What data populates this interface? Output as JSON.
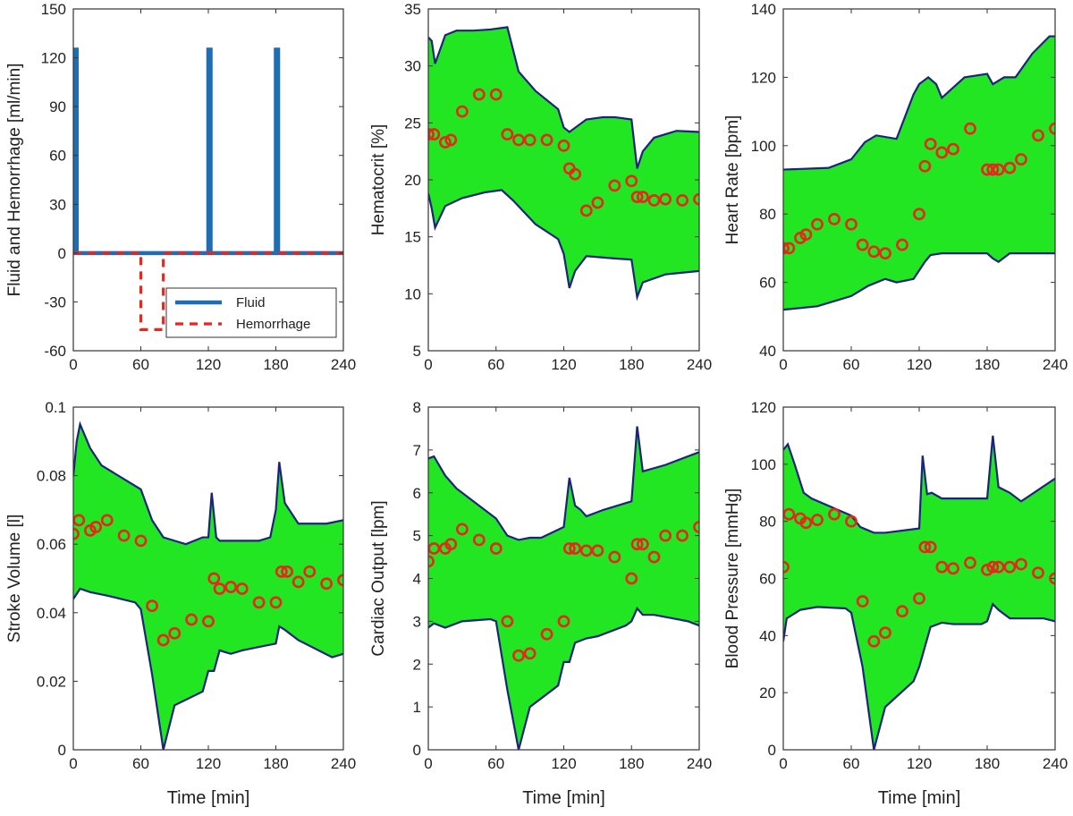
{
  "chart_data": [
    {
      "type": "line",
      "id": "fluid-hemorrhage",
      "ylabel": "Fluid and Hemorrhage [ml/min]",
      "xlabel": "",
      "xlim": [
        0,
        240
      ],
      "ylim": [
        -60,
        150
      ],
      "xticks": [
        0,
        60,
        120,
        180,
        240
      ],
      "yticks": [
        -60,
        -30,
        0,
        30,
        60,
        90,
        120,
        150
      ],
      "legend": {
        "position": "bottom-right",
        "entries": [
          "Fluid",
          "Hemorrhage"
        ]
      },
      "series": [
        {
          "name": "Fluid",
          "style": "solid",
          "color": "#1f6db5",
          "x": [
            0,
            1,
            1,
            3,
            3,
            120,
            120,
            122,
            122,
            180,
            180,
            182,
            182,
            240
          ],
          "y": [
            0,
            0,
            125,
            125,
            0,
            0,
            125,
            125,
            0,
            0,
            125,
            125,
            0,
            0
          ]
        },
        {
          "name": "Hemorrhage",
          "style": "dashed",
          "color": "#e8261c",
          "x": [
            0,
            60,
            60,
            80,
            80,
            240
          ],
          "y": [
            0,
            0,
            -47,
            -47,
            0,
            0
          ]
        }
      ]
    },
    {
      "type": "area",
      "id": "hematocrit",
      "ylabel": "Hematocrit [%]",
      "xlabel": "",
      "xlim": [
        0,
        240
      ],
      "ylim": [
        5,
        35
      ],
      "xticks": [
        0,
        60,
        120,
        180,
        240
      ],
      "yticks": [
        5,
        10,
        15,
        20,
        25,
        30,
        35
      ],
      "band_color": "#22e622",
      "band_edge_color": "#1a237e",
      "marker_color": "#e8261c",
      "upper": {
        "x": [
          0,
          3,
          6,
          15,
          25,
          40,
          55,
          70,
          80,
          95,
          115,
          120,
          125,
          140,
          155,
          165,
          180,
          185,
          190,
          200,
          220,
          240
        ],
        "y": [
          32.5,
          32.2,
          30.2,
          32.7,
          33.1,
          33.1,
          33.2,
          33.4,
          29.5,
          27.8,
          26.2,
          24.6,
          24.2,
          25.3,
          25.5,
          25.5,
          25.3,
          21,
          22.5,
          23.7,
          24.3,
          24.2
        ]
      },
      "lower": {
        "x": [
          0,
          3,
          6,
          15,
          30,
          50,
          65,
          75,
          95,
          115,
          120,
          125,
          130,
          140,
          165,
          180,
          185,
          190,
          210,
          240
        ],
        "y": [
          18.8,
          17.5,
          15.8,
          17.7,
          18.4,
          18.9,
          19.1,
          18.2,
          16.1,
          14.8,
          13.5,
          10.5,
          12,
          13.3,
          13.1,
          13,
          9.7,
          11,
          11.7,
          12
        ]
      },
      "points": {
        "x": [
          0,
          5,
          15,
          20,
          30,
          45,
          60,
          70,
          80,
          90,
          105,
          120,
          125,
          130,
          140,
          150,
          165,
          180,
          185,
          190,
          200,
          210,
          225,
          240
        ],
        "y": [
          24,
          24,
          23.3,
          23.5,
          26,
          27.5,
          27.5,
          24,
          23.5,
          23.5,
          23.5,
          23,
          21,
          20.5,
          17.3,
          18,
          19.5,
          19.9,
          18.5,
          18.5,
          18.2,
          18.3,
          18.2,
          18.3
        ]
      }
    },
    {
      "type": "area",
      "id": "heart-rate",
      "ylabel": "Heart Rate [bpm]",
      "xlabel": "",
      "xlim": [
        0,
        240
      ],
      "ylim": [
        40,
        140
      ],
      "xticks": [
        0,
        60,
        120,
        180,
        240
      ],
      "yticks": [
        40,
        60,
        80,
        100,
        120,
        140
      ],
      "band_color": "#22e622",
      "band_edge_color": "#1a237e",
      "marker_color": "#e8261c",
      "upper": {
        "x": [
          0,
          40,
          60,
          72,
          82,
          100,
          115,
          120,
          128,
          135,
          140,
          160,
          180,
          185,
          195,
          205,
          220,
          235,
          240
        ],
        "y": [
          93,
          93.5,
          96,
          101,
          103,
          102,
          115,
          118,
          120,
          118,
          114,
          120,
          121,
          118,
          120,
          120,
          127,
          132,
          132
        ]
      },
      "lower": {
        "x": [
          0,
          30,
          60,
          75,
          90,
          100,
          115,
          125,
          130,
          140,
          170,
          180,
          185,
          190,
          200,
          240
        ],
        "y": [
          52,
          53,
          56,
          59,
          61,
          60,
          61,
          66,
          68,
          68.5,
          68.5,
          68.5,
          67,
          66,
          68.5,
          68.5
        ]
      },
      "points": {
        "x": [
          0,
          5,
          15,
          20,
          30,
          45,
          60,
          70,
          80,
          90,
          105,
          120,
          125,
          130,
          140,
          150,
          165,
          180,
          185,
          190,
          200,
          210,
          225,
          240
        ],
        "y": [
          70,
          70,
          73,
          74,
          77,
          78.5,
          77,
          71,
          69,
          68.5,
          71,
          80,
          94,
          100.5,
          98,
          99,
          105,
          93,
          93,
          93,
          93.5,
          96,
          103,
          105
        ]
      }
    },
    {
      "type": "area",
      "id": "stroke-volume",
      "ylabel": "Stroke Volume [l]",
      "xlabel": "Time [min]",
      "xlim": [
        0,
        240
      ],
      "ylim": [
        0,
        0.1
      ],
      "xticks": [
        0,
        60,
        120,
        180,
        240
      ],
      "yticks": [
        0,
        0.02,
        0.04,
        0.06,
        0.08,
        0.1
      ],
      "band_color": "#22e622",
      "band_edge_color": "#1a237e",
      "marker_color": "#e8261c",
      "upper": {
        "x": [
          0,
          3,
          6,
          15,
          25,
          60,
          70,
          80,
          90,
          100,
          115,
          120,
          123,
          127,
          130,
          140,
          165,
          175,
          180,
          183,
          188,
          200,
          225,
          240
        ],
        "y": [
          0.08,
          0.09,
          0.095,
          0.088,
          0.083,
          0.076,
          0.067,
          0.062,
          0.061,
          0.06,
          0.062,
          0.062,
          0.075,
          0.062,
          0.061,
          0.061,
          0.061,
          0.062,
          0.07,
          0.084,
          0.072,
          0.066,
          0.066,
          0.067
        ]
      },
      "lower": {
        "x": [
          0,
          6,
          15,
          30,
          55,
          60,
          70,
          80,
          90,
          115,
          120,
          125,
          130,
          140,
          150,
          165,
          180,
          183,
          188,
          200,
          230,
          240
        ],
        "y": [
          0.044,
          0.047,
          0.046,
          0.045,
          0.043,
          0.041,
          0.022,
          0,
          0.013,
          0.017,
          0.023,
          0.023,
          0.029,
          0.028,
          0.029,
          0.03,
          0.031,
          0.036,
          0.035,
          0.032,
          0.027,
          0.028
        ]
      },
      "points": {
        "x": [
          0,
          5,
          15,
          20,
          30,
          45,
          60,
          70,
          80,
          90,
          105,
          120,
          125,
          130,
          140,
          150,
          165,
          180,
          185,
          190,
          200,
          210,
          225,
          240
        ],
        "y": [
          0.063,
          0.067,
          0.064,
          0.065,
          0.067,
          0.0625,
          0.061,
          0.042,
          0.032,
          0.034,
          0.038,
          0.0375,
          0.05,
          0.047,
          0.0475,
          0.047,
          0.043,
          0.043,
          0.052,
          0.052,
          0.049,
          0.052,
          0.0485,
          0.0495
        ]
      }
    },
    {
      "type": "area",
      "id": "cardiac-output",
      "ylabel": "Cardiac Output [lpm]",
      "xlabel": "Time [min]",
      "xlim": [
        0,
        240
      ],
      "ylim": [
        0,
        8
      ],
      "xticks": [
        0,
        60,
        120,
        180,
        240
      ],
      "yticks": [
        0,
        1,
        2,
        3,
        4,
        5,
        6,
        7,
        8
      ],
      "band_color": "#22e622",
      "band_edge_color": "#1a237e",
      "marker_color": "#e8261c",
      "upper": {
        "x": [
          0,
          5,
          15,
          25,
          60,
          70,
          80,
          90,
          100,
          120,
          125,
          130,
          135,
          140,
          155,
          180,
          185,
          190,
          210,
          240
        ],
        "y": [
          6.8,
          6.85,
          6.4,
          6.1,
          5.4,
          5,
          4.9,
          4.95,
          4.95,
          5.2,
          6.35,
          5.7,
          5.6,
          5.45,
          5.6,
          5.8,
          7.55,
          6.5,
          6.65,
          6.95
        ]
      },
      "lower": {
        "x": [
          0,
          5,
          15,
          30,
          55,
          60,
          70,
          80,
          90,
          115,
          120,
          125,
          130,
          140,
          150,
          175,
          180,
          185,
          190,
          200,
          230,
          240
        ],
        "y": [
          2.85,
          2.95,
          2.85,
          3,
          3.05,
          3,
          1.4,
          0,
          1,
          1.5,
          2.05,
          2.05,
          2.5,
          2.6,
          2.65,
          2.9,
          3,
          3.3,
          3.15,
          3.15,
          3,
          2.9
        ]
      },
      "points": {
        "x": [
          0,
          5,
          15,
          20,
          30,
          45,
          60,
          70,
          80,
          90,
          105,
          120,
          125,
          130,
          140,
          150,
          165,
          180,
          185,
          190,
          200,
          210,
          225,
          240
        ],
        "y": [
          4.4,
          4.7,
          4.7,
          4.8,
          5.15,
          4.9,
          4.7,
          3,
          2.2,
          2.25,
          2.7,
          3,
          4.7,
          4.7,
          4.65,
          4.65,
          4.5,
          4,
          4.8,
          4.8,
          4.5,
          5,
          5,
          5.2
        ]
      }
    },
    {
      "type": "area",
      "id": "blood-pressure",
      "ylabel": "Blood Pressure [mmHg]",
      "xlabel": "Time [min]",
      "xlim": [
        0,
        240
      ],
      "ylim": [
        0,
        120
      ],
      "xticks": [
        0,
        60,
        120,
        180,
        240
      ],
      "yticks": [
        0,
        20,
        40,
        60,
        80,
        100,
        120
      ],
      "band_color": "#22e622",
      "band_edge_color": "#1a237e",
      "marker_color": "#e8261c",
      "upper": {
        "x": [
          0,
          4,
          10,
          18,
          25,
          60,
          68,
          80,
          90,
          120,
          123,
          127,
          131,
          140,
          170,
          180,
          185,
          190,
          200,
          210,
          240
        ],
        "y": [
          105,
          107,
          100,
          90,
          88,
          82,
          78,
          76,
          76,
          77.5,
          103,
          89.5,
          90,
          88,
          88,
          88,
          110,
          92,
          90,
          87,
          95
        ]
      },
      "lower": {
        "x": [
          0,
          3,
          15,
          30,
          55,
          60,
          70,
          80,
          90,
          115,
          120,
          125,
          130,
          140,
          150,
          175,
          180,
          185,
          190,
          200,
          230,
          240
        ],
        "y": [
          38,
          46,
          49,
          50,
          49.5,
          48,
          29,
          0,
          15,
          24,
          29,
          36,
          43,
          44.5,
          44,
          44,
          45,
          51,
          49,
          46,
          46,
          45
        ]
      },
      "points": {
        "x": [
          0,
          5,
          15,
          20,
          30,
          45,
          60,
          70,
          80,
          90,
          105,
          120,
          125,
          130,
          140,
          150,
          165,
          180,
          185,
          190,
          200,
          210,
          225,
          240
        ],
        "y": [
          64,
          82.5,
          81,
          79.5,
          80.5,
          82.5,
          80,
          52,
          38,
          41,
          48.5,
          53,
          71,
          71,
          64,
          63.5,
          65.5,
          63,
          64,
          64,
          64,
          65,
          62,
          60
        ]
      }
    }
  ]
}
